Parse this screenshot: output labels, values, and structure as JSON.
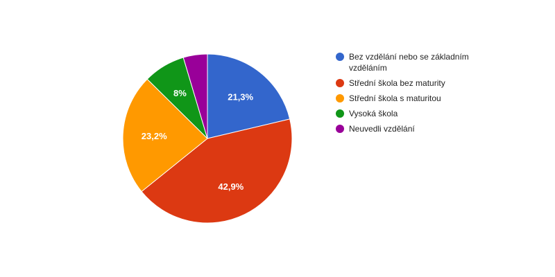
{
  "chart_data": {
    "type": "pie",
    "title": "",
    "categories": [
      "Bez vzdělání nebo se základním vzděláním",
      "Střední škola bez maturity",
      "Střední škola s maturitou",
      "Vysoká škola",
      "Neuvedli vzdělání"
    ],
    "values": [
      21.3,
      42.9,
      23.2,
      8.0,
      4.6
    ],
    "labels": [
      "21,3%",
      "42,9%",
      "23,2%",
      "8%",
      ""
    ],
    "colors": [
      "#3366cc",
      "#dc3912",
      "#ff9900",
      "#109618",
      "#990099"
    ],
    "legend": "right"
  }
}
